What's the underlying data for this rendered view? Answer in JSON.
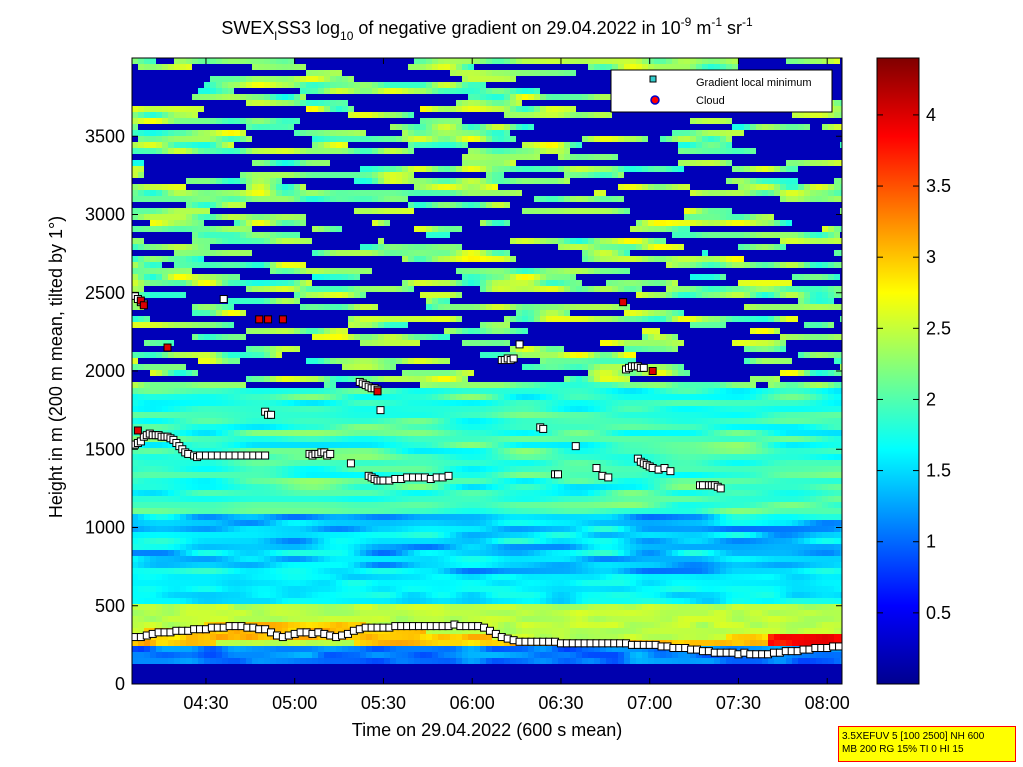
{
  "figure": {
    "title_main": "SWEX",
    "title_sub": "l",
    "title_cont": "SS3 log",
    "title_sub2": "10",
    "title_rest": " of negative gradient on 29.04.2022 in 10",
    "title_exp1": "-9",
    "title_unit_m": " m",
    "title_exp2": "-1",
    "title_unit_sr": " sr",
    "title_exp3": "-1",
    "info_box_line1": "3.5XEFUV 5 [100 2500] NH 600",
    "info_box_line2": "MB 200 RG 15% TI 0 HI 15"
  },
  "chart_data": {
    "type": "heatmap",
    "xlabel": "Time on 29.04.2022 (600 s mean)",
    "ylabel": "Height in m (200 m mean, tilted by 1°)",
    "x_range_minutes": [
      245,
      485
    ],
    "x_ticks": [
      {
        "label": "04:30",
        "minutes": 270
      },
      {
        "label": "05:00",
        "minutes": 300
      },
      {
        "label": "05:30",
        "minutes": 330
      },
      {
        "label": "06:00",
        "minutes": 360
      },
      {
        "label": "06:30",
        "minutes": 390
      },
      {
        "label": "07:00",
        "minutes": 420
      },
      {
        "label": "07:30",
        "minutes": 450
      },
      {
        "label": "08:00",
        "minutes": 480
      }
    ],
    "ylim": [
      0,
      4000
    ],
    "y_ticks": [
      0,
      500,
      1000,
      1500,
      2000,
      2500,
      3000,
      3500
    ],
    "colorbar": {
      "range": [
        0,
        4.4
      ],
      "ticks": [
        "0.5",
        "1",
        "1.5",
        "2",
        "2.5",
        "3",
        "3.5",
        "4"
      ],
      "tick_values": [
        0.5,
        1,
        1.5,
        2,
        2.5,
        3,
        3.5,
        4
      ],
      "colormap": "jet"
    },
    "legend": {
      "placement": "top-right",
      "entries": [
        {
          "label": "Gradient local minimum",
          "marker": "square",
          "color": "#33cccc"
        },
        {
          "label": "Cloud",
          "marker": "circle",
          "color": "#ff0000"
        }
      ]
    },
    "series": [
      {
        "name": "Gradient local minimum",
        "points": [
          [
            246,
            1530
          ],
          [
            247,
            1540
          ],
          [
            248,
            1550
          ],
          [
            249,
            1580
          ],
          [
            250,
            1590
          ],
          [
            251,
            1600
          ],
          [
            252,
            1590
          ],
          [
            253,
            1590
          ],
          [
            254,
            1590
          ],
          [
            255,
            1580
          ],
          [
            256,
            1580
          ],
          [
            257,
            1580
          ],
          [
            258,
            1570
          ],
          [
            259,
            1560
          ],
          [
            260,
            1540
          ],
          [
            261,
            1520
          ],
          [
            262,
            1500
          ],
          [
            263,
            1480
          ],
          [
            264,
            1470
          ],
          [
            266,
            1460
          ],
          [
            267,
            1450
          ],
          [
            268,
            1460
          ],
          [
            270,
            1460
          ],
          [
            272,
            1460
          ],
          [
            274,
            1460
          ],
          [
            276,
            1460
          ],
          [
            278,
            1460
          ],
          [
            280,
            1460
          ],
          [
            282,
            1460
          ],
          [
            284,
            1460
          ],
          [
            286,
            1460
          ],
          [
            288,
            1460
          ],
          [
            290,
            1460
          ],
          [
            246,
            2480
          ],
          [
            247,
            2460
          ],
          [
            248,
            2440
          ],
          [
            249,
            2430
          ],
          [
            276,
            2460
          ],
          [
            290,
            1740
          ],
          [
            291,
            1720
          ],
          [
            292,
            1720
          ],
          [
            305,
            1470
          ],
          [
            306,
            1460
          ],
          [
            307,
            1470
          ],
          [
            308,
            1470
          ],
          [
            309,
            1480
          ],
          [
            310,
            1480
          ],
          [
            311,
            1460
          ],
          [
            312,
            1470
          ],
          [
            319,
            1410
          ],
          [
            322,
            1930
          ],
          [
            323,
            1920
          ],
          [
            324,
            1910
          ],
          [
            325,
            1900
          ],
          [
            326,
            1890
          ],
          [
            327,
            1890
          ],
          [
            328,
            1880
          ],
          [
            325,
            1330
          ],
          [
            326,
            1320
          ],
          [
            327,
            1310
          ],
          [
            328,
            1300
          ],
          [
            329,
            1300
          ],
          [
            330,
            1300
          ],
          [
            332,
            1300
          ],
          [
            334,
            1310
          ],
          [
            336,
            1310
          ],
          [
            338,
            1320
          ],
          [
            340,
            1320
          ],
          [
            342,
            1320
          ],
          [
            344,
            1320
          ],
          [
            346,
            1310
          ],
          [
            348,
            1320
          ],
          [
            350,
            1320
          ],
          [
            352,
            1330
          ],
          [
            329,
            1750
          ],
          [
            370,
            2070
          ],
          [
            371,
            2070
          ],
          [
            372,
            2080
          ],
          [
            373,
            2070
          ],
          [
            374,
            2080
          ],
          [
            376,
            2170
          ],
          [
            383,
            1640
          ],
          [
            384,
            1630
          ],
          [
            388,
            1340
          ],
          [
            389,
            1340
          ],
          [
            395,
            1520
          ],
          [
            402,
            1380
          ],
          [
            404,
            1330
          ],
          [
            406,
            1320
          ],
          [
            412,
            2010
          ],
          [
            413,
            2020
          ],
          [
            414,
            2030
          ],
          [
            415,
            2030
          ],
          [
            416,
            2030
          ],
          [
            417,
            2020
          ],
          [
            418,
            2020
          ],
          [
            416,
            1440
          ],
          [
            417,
            1420
          ],
          [
            418,
            1410
          ],
          [
            419,
            1400
          ],
          [
            420,
            1390
          ],
          [
            421,
            1380
          ],
          [
            423,
            1370
          ],
          [
            425,
            1380
          ],
          [
            427,
            1360
          ],
          [
            437,
            1270
          ],
          [
            438,
            1270
          ],
          [
            440,
            1270
          ],
          [
            441,
            1270
          ],
          [
            442,
            1270
          ],
          [
            443,
            1260
          ],
          [
            444,
            1250
          ],
          [
            246,
            300
          ],
          [
            248,
            300
          ],
          [
            250,
            310
          ],
          [
            252,
            320
          ],
          [
            254,
            330
          ],
          [
            256,
            330
          ],
          [
            258,
            330
          ],
          [
            260,
            340
          ],
          [
            262,
            340
          ],
          [
            264,
            340
          ],
          [
            266,
            350
          ],
          [
            268,
            350
          ],
          [
            270,
            350
          ],
          [
            272,
            360
          ],
          [
            274,
            360
          ],
          [
            276,
            360
          ],
          [
            278,
            370
          ],
          [
            280,
            370
          ],
          [
            282,
            370
          ],
          [
            284,
            360
          ],
          [
            286,
            360
          ],
          [
            288,
            350
          ],
          [
            290,
            350
          ],
          [
            292,
            330
          ],
          [
            294,
            310
          ],
          [
            296,
            300
          ],
          [
            298,
            310
          ],
          [
            300,
            320
          ],
          [
            302,
            330
          ],
          [
            304,
            330
          ],
          [
            306,
            320
          ],
          [
            308,
            330
          ],
          [
            310,
            320
          ],
          [
            312,
            310
          ],
          [
            314,
            300
          ],
          [
            316,
            310
          ],
          [
            318,
            320
          ],
          [
            320,
            340
          ],
          [
            322,
            350
          ],
          [
            324,
            360
          ],
          [
            326,
            360
          ],
          [
            328,
            360
          ],
          [
            330,
            360
          ],
          [
            332,
            360
          ],
          [
            334,
            370
          ],
          [
            336,
            370
          ],
          [
            338,
            370
          ],
          [
            340,
            370
          ],
          [
            342,
            370
          ],
          [
            344,
            370
          ],
          [
            346,
            370
          ],
          [
            348,
            370
          ],
          [
            350,
            370
          ],
          [
            352,
            370
          ],
          [
            354,
            380
          ],
          [
            356,
            370
          ],
          [
            358,
            370
          ],
          [
            360,
            370
          ],
          [
            362,
            370
          ],
          [
            364,
            360
          ],
          [
            366,
            340
          ],
          [
            368,
            320
          ],
          [
            370,
            300
          ],
          [
            372,
            290
          ],
          [
            374,
            280
          ],
          [
            376,
            270
          ],
          [
            378,
            270
          ],
          [
            380,
            270
          ],
          [
            382,
            270
          ],
          [
            384,
            270
          ],
          [
            386,
            270
          ],
          [
            388,
            270
          ],
          [
            390,
            260
          ],
          [
            392,
            260
          ],
          [
            394,
            260
          ],
          [
            396,
            260
          ],
          [
            398,
            260
          ],
          [
            400,
            260
          ],
          [
            402,
            260
          ],
          [
            404,
            260
          ],
          [
            406,
            260
          ],
          [
            408,
            260
          ],
          [
            410,
            260
          ],
          [
            412,
            260
          ],
          [
            414,
            250
          ],
          [
            416,
            250
          ],
          [
            418,
            250
          ],
          [
            420,
            250
          ],
          [
            422,
            250
          ],
          [
            424,
            240
          ],
          [
            426,
            240
          ],
          [
            428,
            230
          ],
          [
            430,
            230
          ],
          [
            432,
            230
          ],
          [
            434,
            220
          ],
          [
            436,
            220
          ],
          [
            438,
            210
          ],
          [
            440,
            210
          ],
          [
            442,
            200
          ],
          [
            444,
            200
          ],
          [
            446,
            200
          ],
          [
            448,
            200
          ],
          [
            450,
            190
          ],
          [
            452,
            200
          ],
          [
            454,
            190
          ],
          [
            456,
            190
          ],
          [
            458,
            190
          ],
          [
            460,
            190
          ],
          [
            462,
            200
          ],
          [
            464,
            200
          ],
          [
            466,
            210
          ],
          [
            468,
            210
          ],
          [
            470,
            210
          ],
          [
            472,
            220
          ],
          [
            474,
            220
          ],
          [
            476,
            230
          ],
          [
            478,
            230
          ],
          [
            480,
            230
          ],
          [
            482,
            240
          ],
          [
            484,
            240
          ]
        ]
      },
      {
        "name": "Cloud",
        "points": [
          [
            248,
            2450
          ],
          [
            249,
            2420
          ],
          [
            247,
            1620
          ],
          [
            257,
            2150
          ],
          [
            288,
            2330
          ],
          [
            291,
            2330
          ],
          [
            296,
            2330
          ],
          [
            328,
            1870
          ],
          [
            411,
            2440
          ],
          [
            421,
            2000
          ]
        ]
      }
    ]
  }
}
